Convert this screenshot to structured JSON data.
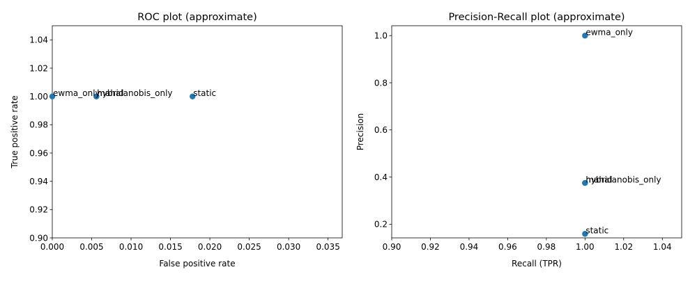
{
  "chart_data": [
    {
      "type": "scatter",
      "title": "ROC plot (approximate)",
      "xlabel": "False positive rate",
      "ylabel": "True positive rate",
      "xlim": [
        0.0,
        0.0368
      ],
      "ylim": [
        0.9,
        1.05
      ],
      "xticks": [
        "0.000",
        "0.005",
        "0.010",
        "0.015",
        "0.020",
        "0.025",
        "0.030",
        "0.035"
      ],
      "yticks": [
        "0.90",
        "0.92",
        "0.94",
        "0.96",
        "0.98",
        "1.00",
        "1.02",
        "1.04"
      ],
      "xtick_values": [
        0.0,
        0.005,
        0.01,
        0.015,
        0.02,
        0.025,
        0.03,
        0.035
      ],
      "ytick_values": [
        0.9,
        0.92,
        0.94,
        0.96,
        0.98,
        1.0,
        1.02,
        1.04
      ],
      "points": [
        {
          "label": "ewma_only",
          "x": 0.0,
          "y": 1.0
        },
        {
          "label": "hybrid",
          "x": 0.0056,
          "y": 1.0
        },
        {
          "label": "mahalanobis_only",
          "x": 0.0056,
          "y": 1.0
        },
        {
          "label": "static",
          "x": 0.0178,
          "y": 1.0
        }
      ],
      "color": "#1f77b4",
      "grid": false
    },
    {
      "type": "scatter",
      "title": "Precision-Recall plot (approximate)",
      "xlabel": "Recall (TPR)",
      "ylabel": "Precision",
      "xlim": [
        0.9,
        1.05
      ],
      "ylim": [
        0.142,
        1.042
      ],
      "xticks": [
        "0.90",
        "0.92",
        "0.94",
        "0.96",
        "0.98",
        "1.00",
        "1.02",
        "1.04"
      ],
      "yticks": [
        "0.2",
        "0.4",
        "0.6",
        "0.8",
        "1.0"
      ],
      "xtick_values": [
        0.9,
        0.92,
        0.94,
        0.96,
        0.98,
        1.0,
        1.02,
        1.04
      ],
      "ytick_values": [
        0.2,
        0.4,
        0.6,
        0.8,
        1.0
      ],
      "points": [
        {
          "label": "ewma_only",
          "x": 1.0,
          "y": 1.0
        },
        {
          "label": "hybrid",
          "x": 1.0,
          "y": 0.375
        },
        {
          "label": "mahalanobis_only",
          "x": 1.0,
          "y": 0.375
        },
        {
          "label": "static",
          "x": 1.0,
          "y": 0.159
        }
      ],
      "color": "#1f77b4",
      "grid": false
    }
  ]
}
